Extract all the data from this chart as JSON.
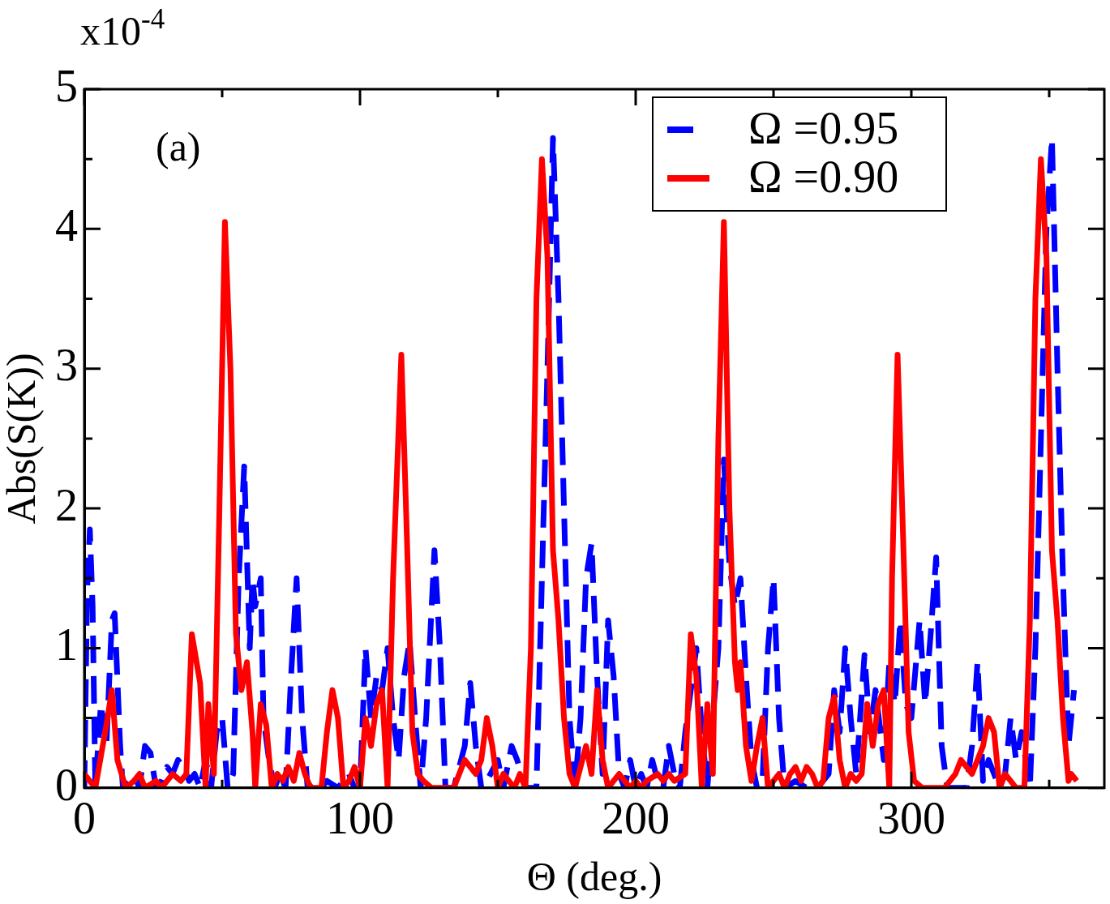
{
  "chart_data": {
    "type": "line",
    "xlabel": "Θ (deg.)",
    "ylabel": "Abs(S(K))",
    "annotations": [
      "x10$^{-4}$",
      "(a)"
    ],
    "xlim": [
      0,
      370
    ],
    "xticks": [
      0,
      {
        "value": 50,
        "label": null
      },
      100,
      {
        "value": 150,
        "label": null
      },
      200,
      {
        "value": 250,
        "label": null
      },
      300,
      {
        "value": 350,
        "label": null
      }
    ],
    "ylim": [
      0,
      5
    ],
    "yticks": [
      0,
      {
        "value": 0.5,
        "label": null
      },
      1,
      {
        "value": 1.5,
        "label": null
      },
      2,
      {
        "value": 2.5,
        "label": null
      },
      3,
      {
        "value": 3.5,
        "label": null
      },
      4,
      {
        "value": 4.5,
        "label": null
      },
      5
    ],
    "grid": false,
    "legend": "top right",
    "marker": "none",
    "series": [
      {
        "name": "Ω =0.95",
        "color": "#0000ff",
        "line_style": "dashed",
        "x": [
          0,
          1,
          2,
          3,
          4,
          6,
          8,
          10,
          11,
          13,
          14,
          16,
          18,
          20,
          22,
          24,
          26,
          28,
          30,
          32,
          34,
          36,
          38,
          40,
          42,
          44,
          46,
          48,
          50,
          52,
          54,
          56,
          58,
          60,
          61,
          62,
          64,
          65,
          67,
          69,
          71,
          73,
          75,
          77,
          79,
          81,
          84,
          86,
          88,
          92,
          96,
          98,
          100,
          102,
          104,
          106,
          108,
          110,
          112,
          114,
          116,
          118,
          120,
          122,
          124,
          127,
          129,
          131,
          134,
          138,
          140,
          142,
          144,
          146,
          150,
          152,
          155,
          157,
          160,
          164,
          166,
          168,
          170,
          172,
          174,
          176,
          178,
          180,
          182,
          184,
          186,
          188,
          190,
          192,
          194,
          196,
          198,
          200,
          202,
          204,
          206,
          208,
          210,
          212,
          214,
          216,
          218,
          220,
          222,
          224,
          226,
          228,
          230,
          232,
          234,
          236,
          238,
          240,
          242,
          244,
          246,
          248,
          250,
          252,
          254,
          258,
          262,
          266,
          270,
          272,
          274,
          276,
          278,
          280,
          283,
          285,
          287,
          290,
          292,
          294,
          296,
          298,
          300,
          303,
          305,
          307,
          309,
          311,
          313,
          320,
          322,
          324,
          326,
          328,
          330,
          332,
          334,
          336,
          338,
          340,
          343,
          345,
          347,
          349,
          351,
          353,
          355,
          357,
          359
        ],
        "values": [
          0,
          1.4,
          1.85,
          1.3,
          0,
          0.6,
          0.3,
          1.2,
          1.25,
          0.3,
          0,
          0.05,
          0.1,
          0,
          0.3,
          0.25,
          0,
          0.05,
          0.15,
          0.1,
          0.2,
          0.15,
          0.05,
          0.1,
          0,
          0.2,
          0,
          0.4,
          0.5,
          0,
          0.1,
          1.5,
          2.3,
          1,
          1.5,
          1.3,
          1.5,
          0.5,
          0.2,
          0,
          0.1,
          0,
          0.8,
          1.5,
          0.5,
          0,
          0.05,
          0,
          0.05,
          0,
          0.1,
          0,
          0,
          1,
          0.5,
          0.8,
          0.7,
          1,
          0.5,
          0.2,
          0.8,
          1.05,
          0.5,
          0,
          0.5,
          1.7,
          1,
          0,
          0,
          0.3,
          0.75,
          0.3,
          0,
          0.05,
          0.2,
          0,
          0.3,
          0.2,
          0,
          0,
          1.5,
          3,
          4.65,
          3.5,
          2,
          0.5,
          0,
          0.5,
          1.5,
          1.75,
          0.8,
          0.1,
          1.2,
          0.8,
          0.1,
          0,
          0.2,
          0,
          0.1,
          0,
          0.2,
          0.05,
          0,
          0.3,
          0.1,
          0,
          0.4,
          0.7,
          1,
          0.4,
          0,
          0.5,
          1,
          2.35,
          1.6,
          1.3,
          1.5,
          0.8,
          0.2,
          0,
          0.05,
          1,
          1.5,
          0.5,
          0,
          0.05,
          0,
          0,
          0.1,
          0.7,
          0.4,
          1,
          0.5,
          0.1,
          0.95,
          0.4,
          0.7,
          0.2,
          0.9,
          0.6,
          1.2,
          0.6,
          0.5,
          1.2,
          0.6,
          1.1,
          1.65,
          0.3,
          0,
          0,
          0.3,
          0.9,
          0.05,
          0.2,
          0.1,
          0,
          0.1,
          0.5,
          0.2,
          0.4,
          0,
          1,
          2.5,
          4,
          4.65,
          3,
          1.5,
          0.3,
          0.7
        ]
      },
      {
        "name": "Ω =0.90",
        "color": "#ff0000",
        "line_style": "solid",
        "x": [
          0,
          4,
          8,
          10,
          12,
          15,
          18,
          20,
          22,
          26,
          28,
          32,
          35,
          37,
          39,
          42,
          44,
          45,
          47,
          49,
          51,
          53,
          55,
          57,
          59,
          61,
          62,
          64,
          66,
          68,
          70,
          72,
          74,
          76,
          78,
          80,
          82,
          86,
          88,
          90,
          92,
          94,
          96,
          98,
          100,
          102,
          104,
          106,
          108,
          110,
          112,
          115,
          117,
          119,
          121,
          123,
          126,
          134,
          136,
          138,
          140,
          142,
          144,
          146,
          148,
          150,
          152,
          154,
          156,
          158,
          160,
          162,
          164,
          166,
          168,
          170,
          172,
          174,
          176,
          178,
          180,
          182,
          184,
          186,
          188,
          190,
          192,
          194,
          196,
          198,
          200,
          202,
          204,
          208,
          210,
          212,
          214,
          218,
          220,
          222,
          224,
          226,
          228,
          230,
          232,
          234,
          236,
          237,
          238,
          240,
          242,
          244,
          246,
          248,
          250,
          252,
          254,
          256,
          258,
          260,
          262,
          264,
          266,
          268,
          270,
          272,
          274,
          276,
          278,
          280,
          282,
          284,
          286,
          288,
          290,
          292,
          293,
          295,
          297,
          299,
          301,
          304,
          312,
          314,
          316,
          318,
          320,
          322,
          324,
          326,
          328,
          330,
          332,
          334,
          336,
          338,
          341,
          343,
          345,
          347,
          349,
          351,
          353,
          355,
          357,
          358,
          360
        ],
        "values": [
          0.1,
          0,
          0.45,
          0.7,
          0.2,
          0,
          0.05,
          0.1,
          0,
          0.05,
          0,
          0.1,
          0.05,
          0.1,
          1.1,
          0.75,
          0,
          0.6,
          0.1,
          2,
          4.05,
          3,
          1.1,
          0.7,
          0.9,
          0.4,
          0,
          0.6,
          0.45,
          0,
          0.1,
          0.05,
          0.15,
          0.05,
          0.25,
          0.1,
          0,
          0,
          0.4,
          0.7,
          0.5,
          0,
          0.05,
          0.15,
          0,
          0.5,
          0.3,
          0.6,
          0.7,
          0,
          1.5,
          3.1,
          1.8,
          0.4,
          0.1,
          0.05,
          0,
          0,
          0.1,
          0.2,
          0.15,
          0.1,
          0.2,
          0.5,
          0.3,
          0,
          0.1,
          0.05,
          0,
          0.1,
          0,
          1,
          3.5,
          4.5,
          3.8,
          1.7,
          1.2,
          0.5,
          0.1,
          0,
          0.15,
          0.3,
          0.1,
          0.7,
          0.2,
          0,
          0.05,
          0.1,
          0.05,
          0,
          0.05,
          0,
          0.05,
          0.1,
          0.05,
          0.1,
          0.05,
          0.1,
          1.1,
          0.8,
          0,
          0.6,
          0.1,
          2.5,
          4.05,
          2,
          0.9,
          0.7,
          0.9,
          0.3,
          0.05,
          0.3,
          0.5,
          0,
          0.05,
          0.1,
          0,
          0.1,
          0.15,
          0.05,
          0.15,
          0.1,
          0,
          0.05,
          0.5,
          0.65,
          0.2,
          0,
          0.1,
          0.05,
          0.1,
          0.6,
          0.3,
          0.6,
          0.7,
          0,
          1.5,
          3.1,
          1.8,
          0.4,
          0.05,
          0,
          0,
          0.05,
          0.1,
          0.2,
          0.15,
          0.1,
          0.2,
          0.3,
          0.5,
          0.4,
          0,
          0.1,
          0.05,
          0,
          0,
          1.2,
          3.5,
          4.5,
          3.8,
          1.7,
          1.2,
          0.5,
          0.05,
          0.1,
          0.05
        ]
      }
    ]
  }
}
